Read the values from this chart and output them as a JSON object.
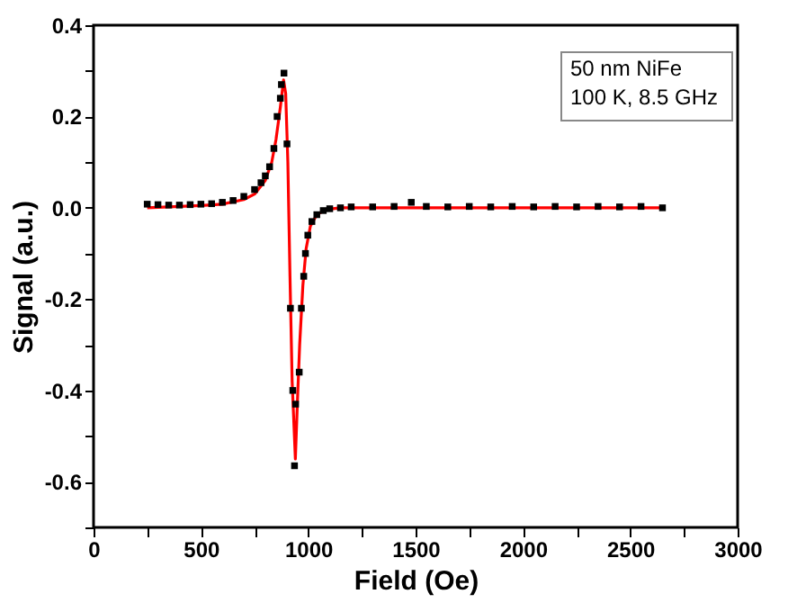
{
  "chart_data": {
    "type": "scatter",
    "xlabel": "Field (Oe)",
    "ylabel": "Signal (a.u.)",
    "xlim": [
      0,
      3000
    ],
    "ylim": [
      -0.7,
      0.4
    ],
    "xticks": [
      0,
      {
        "value": 250,
        "label": null
      },
      500,
      {
        "value": 750,
        "label": null
      },
      1000,
      {
        "value": 1250,
        "label": null
      },
      1500,
      {
        "value": 1750,
        "label": null
      },
      2000,
      {
        "value": 2250,
        "label": null
      },
      2500,
      {
        "value": 2750,
        "label": null
      },
      3000
    ],
    "yticks": [
      {
        "value": -0.7,
        "label": null
      },
      -0.6,
      {
        "value": -0.5,
        "label": null
      },
      -0.4,
      {
        "value": -0.3,
        "label": null
      },
      -0.2,
      {
        "value": -0.1,
        "label": null
      },
      {
        "value": 0,
        "label": "0.0"
      },
      {
        "value": 0.1,
        "label": null
      },
      0.2,
      {
        "value": 0.3,
        "label": null
      },
      0.4
    ],
    "grid": false,
    "annotations": [
      "50 nm NiFe\n100 K, 8.5 GHz"
    ],
    "series": [
      {
        "color": "#000000",
        "marker": "square",
        "x": [
          250,
          300,
          350,
          400,
          450,
          500,
          550,
          600,
          650,
          700,
          750,
          780,
          800,
          820,
          840,
          855,
          870,
          875,
          887,
          901,
          917,
          928,
          936,
          941,
          958,
          968,
          979,
          987,
          998,
          1017,
          1040,
          1070,
          1100,
          1150,
          1200,
          1300,
          1400,
          1480,
          1550,
          1650,
          1750,
          1850,
          1950,
          2050,
          2150,
          2250,
          2350,
          2450,
          2550,
          2650
        ],
        "values": [
          0.008,
          0.007,
          0.006,
          0.006,
          0.007,
          0.008,
          0.009,
          0.012,
          0.016,
          0.025,
          0.04,
          0.055,
          0.07,
          0.09,
          0.13,
          0.2,
          0.24,
          0.27,
          0.295,
          0.14,
          -0.22,
          -0.4,
          -0.565,
          -0.43,
          -0.36,
          -0.22,
          -0.15,
          -0.1,
          -0.06,
          -0.03,
          -0.015,
          -0.006,
          -0.002,
          0.0,
          0.002,
          0.002,
          0.003,
          0.012,
          0.003,
          0.002,
          0.003,
          0.002,
          0.003,
          0.002,
          0.003,
          0.002,
          0.003,
          0.002,
          0.003,
          0.0
        ]
      },
      {
        "type": "line",
        "color": "#ff0000",
        "line_style": "solid",
        "x": [
          250,
          400,
          500,
          600,
          700,
          750,
          800,
          830,
          850,
          870,
          885,
          895,
          905,
          915,
          925,
          940,
          950,
          960,
          975,
          990,
          1010,
          1040,
          1080,
          1150,
          2650
        ],
        "values": [
          0.0,
          0.003,
          0.005,
          0.008,
          0.018,
          0.03,
          0.06,
          0.1,
          0.15,
          0.22,
          0.28,
          0.25,
          0.1,
          -0.15,
          -0.38,
          -0.55,
          -0.42,
          -0.3,
          -0.17,
          -0.09,
          -0.04,
          -0.015,
          -0.004,
          0.0,
          0.0
        ]
      }
    ]
  }
}
